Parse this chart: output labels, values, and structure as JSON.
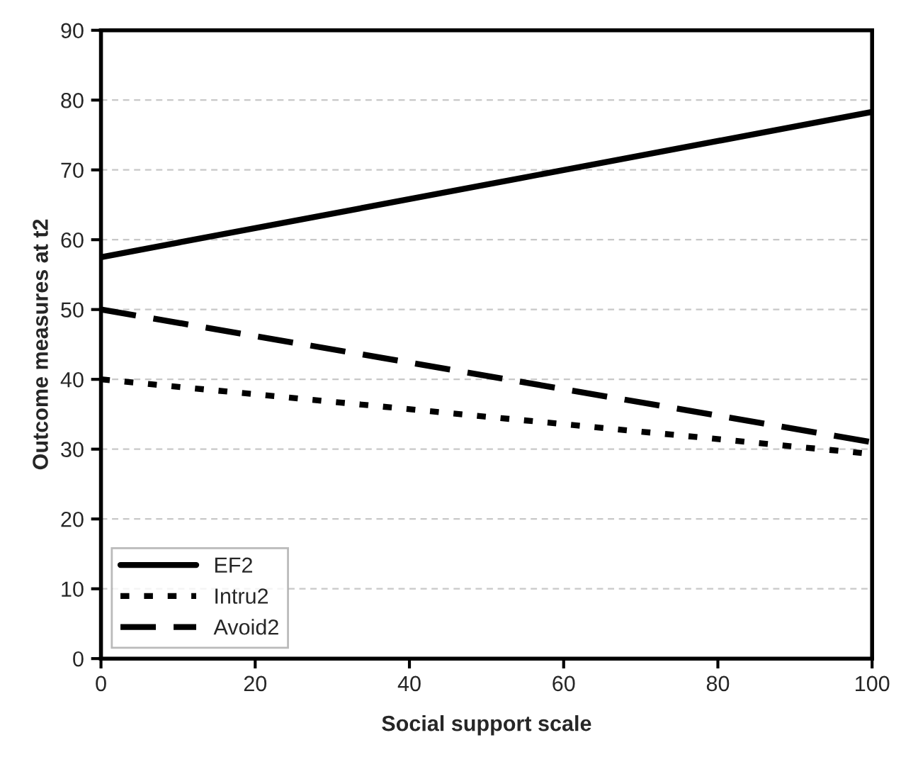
{
  "chart_data": {
    "type": "line",
    "xlabel": "Social support scale",
    "ylabel": "Outcome measures at t2",
    "x": [
      0,
      100
    ],
    "series": [
      {
        "name": "EF2",
        "color": "#000000",
        "values": [
          57.5,
          78.3
        ],
        "line_style": "solid"
      },
      {
        "name": "Intru2",
        "color": "#000000",
        "values": [
          40,
          29.3
        ],
        "line_style": "dotted"
      },
      {
        "name": "Avoid2",
        "color": "#000000",
        "values": [
          50,
          31
        ],
        "line_style": "dashed"
      }
    ],
    "xlim": [
      0,
      100
    ],
    "xticks": [
      0,
      20,
      40,
      60,
      80,
      100
    ],
    "ylim": [
      0,
      90
    ],
    "yticks": [
      0,
      10,
      20,
      30,
      40,
      50,
      60,
      70,
      80,
      90
    ],
    "grid": "y",
    "legend": "bottom left",
    "marker": "none"
  }
}
